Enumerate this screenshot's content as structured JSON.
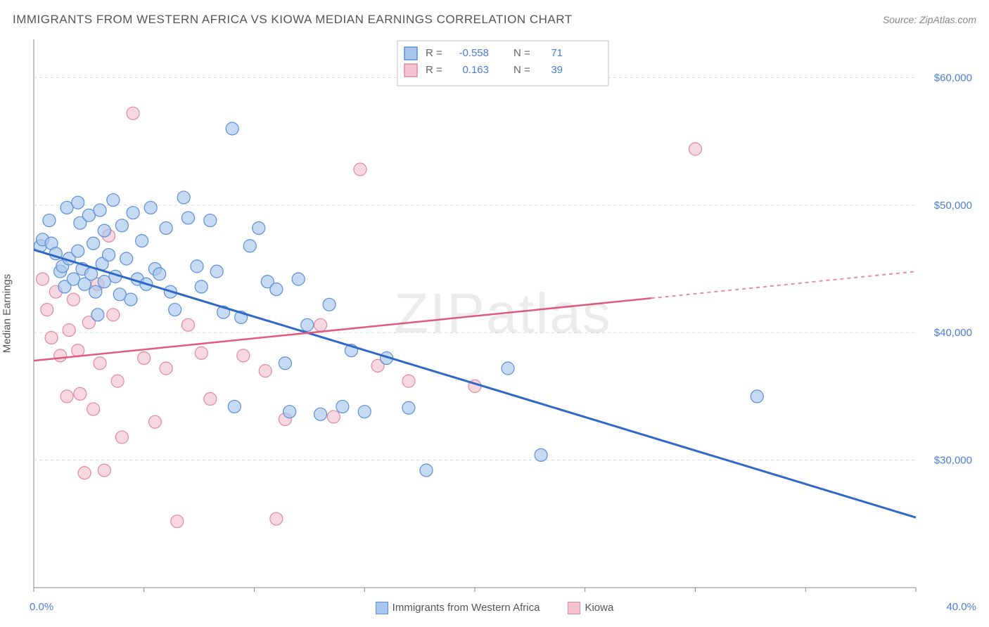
{
  "title": "IMMIGRANTS FROM WESTERN AFRICA VS KIOWA MEDIAN EARNINGS CORRELATION CHART",
  "source_prefix": "Source: ",
  "source_name": "ZipAtlas.com",
  "watermark_a": "ZIP",
  "watermark_b": "atlas",
  "yaxis_label": "Median Earnings",
  "xaxis": {
    "min_label": "0.0%",
    "max_label": "40.0%",
    "min": 0,
    "max": 40
  },
  "yaxis": {
    "min": 20000,
    "max": 63000,
    "ticks": [
      30000,
      40000,
      50000,
      60000
    ],
    "tick_labels": [
      "$30,000",
      "$40,000",
      "$50,000",
      "$60,000"
    ]
  },
  "x_ticks": [
    0,
    5,
    10,
    15,
    20,
    25,
    30,
    35,
    40
  ],
  "grid_color": "#d9d9d9",
  "axis_color": "#888888",
  "tick_label_color": "#4a7fd6",
  "series": {
    "a": {
      "label": "Immigrants from Western Africa",
      "fill": "#a9c6ec",
      "stroke": "#5a8fd6",
      "line_color": "#2f68c6",
      "R_label": "R =",
      "R_value": "-0.558",
      "N_label": "N =",
      "N_value": "71",
      "trend": {
        "x1": 0,
        "y1": 46500,
        "x2": 40,
        "y2": 25500
      },
      "marker_radius": 9,
      "points": [
        [
          0.3,
          46800
        ],
        [
          0.4,
          47300
        ],
        [
          0.7,
          48800
        ],
        [
          0.8,
          47000
        ],
        [
          1.0,
          46200
        ],
        [
          1.2,
          44800
        ],
        [
          1.3,
          45200
        ],
        [
          1.4,
          43600
        ],
        [
          1.5,
          49800
        ],
        [
          1.6,
          45800
        ],
        [
          1.8,
          44200
        ],
        [
          2.0,
          50200
        ],
        [
          2.0,
          46400
        ],
        [
          2.1,
          48600
        ],
        [
          2.2,
          45000
        ],
        [
          2.3,
          43800
        ],
        [
          2.5,
          49200
        ],
        [
          2.6,
          44600
        ],
        [
          2.7,
          47000
        ],
        [
          2.8,
          43200
        ],
        [
          3.0,
          49600
        ],
        [
          3.1,
          45400
        ],
        [
          3.2,
          44000
        ],
        [
          3.2,
          48000
        ],
        [
          3.4,
          46100
        ],
        [
          3.6,
          50400
        ],
        [
          3.7,
          44400
        ],
        [
          3.9,
          43000
        ],
        [
          4.0,
          48400
        ],
        [
          4.2,
          45800
        ],
        [
          4.4,
          42600
        ],
        [
          4.5,
          49400
        ],
        [
          4.7,
          44200
        ],
        [
          4.9,
          47200
        ],
        [
          5.1,
          43800
        ],
        [
          5.3,
          49800
        ],
        [
          5.5,
          45000
        ],
        [
          5.7,
          44600
        ],
        [
          6.0,
          48200
        ],
        [
          6.2,
          43200
        ],
        [
          6.4,
          41800
        ],
        [
          6.8,
          50600
        ],
        [
          7.0,
          49000
        ],
        [
          7.4,
          45200
        ],
        [
          7.6,
          43600
        ],
        [
          8.0,
          48800
        ],
        [
          8.3,
          44800
        ],
        [
          8.6,
          41600
        ],
        [
          9.0,
          56000
        ],
        [
          9.1,
          34200
        ],
        [
          9.4,
          41200
        ],
        [
          9.8,
          46800
        ],
        [
          10.2,
          48200
        ],
        [
          10.6,
          44000
        ],
        [
          11.0,
          43400
        ],
        [
          11.4,
          37600
        ],
        [
          11.6,
          33800
        ],
        [
          12.0,
          44200
        ],
        [
          12.4,
          40600
        ],
        [
          13.0,
          33600
        ],
        [
          13.4,
          42200
        ],
        [
          14.0,
          34200
        ],
        [
          14.4,
          38600
        ],
        [
          15.0,
          33800
        ],
        [
          16.0,
          38000
        ],
        [
          17.0,
          34100
        ],
        [
          17.8,
          29200
        ],
        [
          21.5,
          37200
        ],
        [
          23.0,
          30400
        ],
        [
          32.8,
          35000
        ],
        [
          2.9,
          41400
        ]
      ]
    },
    "b": {
      "label": "Kiowa",
      "fill": "#f3c3cf",
      "stroke": "#e089a0",
      "line_color": "#e05a7e",
      "R_label": "R =",
      "R_value": "0.163",
      "N_label": "N =",
      "N_value": "39",
      "trend": {
        "x1": 0,
        "y1": 37800,
        "x2": 40,
        "y2": 44800,
        "dashed_from_x": 28
      },
      "marker_radius": 9,
      "points": [
        [
          0.4,
          44200
        ],
        [
          0.6,
          41800
        ],
        [
          0.8,
          39600
        ],
        [
          1.0,
          43200
        ],
        [
          1.2,
          38200
        ],
        [
          1.5,
          35000
        ],
        [
          1.6,
          40200
        ],
        [
          1.8,
          42600
        ],
        [
          2.0,
          38600
        ],
        [
          2.1,
          35200
        ],
        [
          2.3,
          29000
        ],
        [
          2.5,
          40800
        ],
        [
          2.7,
          34000
        ],
        [
          2.9,
          43800
        ],
        [
          3.0,
          37600
        ],
        [
          3.2,
          29200
        ],
        [
          3.4,
          47600
        ],
        [
          3.6,
          41400
        ],
        [
          3.8,
          36200
        ],
        [
          4.0,
          31800
        ],
        [
          4.5,
          57200
        ],
        [
          5.0,
          38000
        ],
        [
          5.5,
          33000
        ],
        [
          6.0,
          37200
        ],
        [
          6.5,
          25200
        ],
        [
          7.0,
          40600
        ],
        [
          7.6,
          38400
        ],
        [
          8.0,
          34800
        ],
        [
          9.5,
          38200
        ],
        [
          10.5,
          37000
        ],
        [
          11.0,
          25400
        ],
        [
          11.4,
          33200
        ],
        [
          13.0,
          40600
        ],
        [
          13.6,
          33400
        ],
        [
          14.8,
          52800
        ],
        [
          15.6,
          37400
        ],
        [
          17.0,
          36200
        ],
        [
          20.0,
          35800
        ],
        [
          30.0,
          54400
        ]
      ]
    }
  },
  "top_legend": {
    "border_color": "#c0c0c0",
    "bg": "#ffffff",
    "value_color": "#4a7fd6",
    "label_color": "#666666"
  },
  "bottom_legend_text_color": "#555"
}
